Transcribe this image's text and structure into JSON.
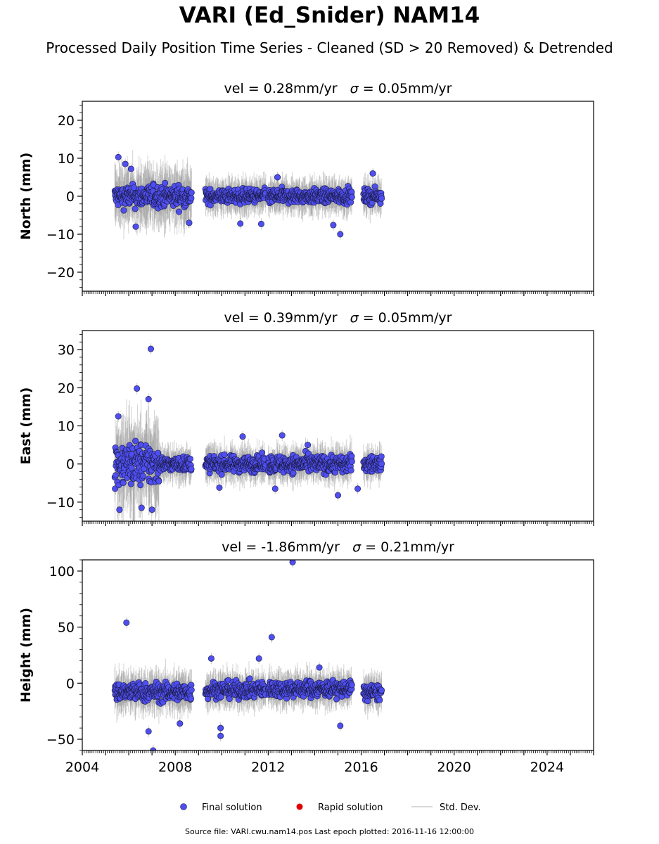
{
  "header": {
    "title": "VARI (Ed_Snider) NAM14",
    "subtitle": "Processed Daily Position Time Series - Cleaned (SD > 20 Removed) & Detrended"
  },
  "footer": {
    "source": "Source file: VARI.cwu.nam14.pos  Last epoch plotted: 2016-11-16 12:00:00"
  },
  "legend": {
    "final_label": "Final solution",
    "rapid_label": "Rapid solution",
    "std_label": "Std. Dev."
  },
  "colors": {
    "final": "#4f4ff0",
    "final_edge": "#1a1a40",
    "rapid": "#e00000",
    "std": "#808080"
  },
  "chart_data": [
    {
      "type": "scatter",
      "title": "vel = 0.28mm/yr   σ = 0.05mm/yr",
      "title_parts": {
        "vel": "vel = 0.28mm/yr",
        "sigma": "σ",
        "sigma_value": " = 0.05mm/yr"
      },
      "ylabel": "North (mm)",
      "xlim": [
        2004.0,
        2026.0
      ],
      "ylim": [
        -25,
        25
      ],
      "yticks": [
        -20,
        -10,
        0,
        10,
        20
      ],
      "ytick_labels": [
        "−20",
        "−10",
        "0",
        "10",
        "20"
      ],
      "xticks": [
        2004,
        2008,
        2012,
        2016,
        2020,
        2024
      ],
      "show_x_tick_labels": false,
      "segments": [
        {
          "start": 2005.4,
          "end": 2008.7,
          "noise": 2.8,
          "err": 6
        },
        {
          "start": 2009.3,
          "end": 2011.9,
          "noise": 1.8,
          "err": 3.5
        },
        {
          "start": 2012.0,
          "end": 2015.6,
          "noise": 1.8,
          "err": 3.5
        },
        {
          "start": 2016.1,
          "end": 2016.88,
          "noise": 1.8,
          "err": 3.5
        }
      ],
      "outliers": [
        {
          "x": 2005.55,
          "y": 10.3
        },
        {
          "x": 2005.85,
          "y": 8.5
        },
        {
          "x": 2006.1,
          "y": 7.2
        },
        {
          "x": 2006.3,
          "y": -8.0
        },
        {
          "x": 2008.6,
          "y": -7.0
        },
        {
          "x": 2010.8,
          "y": -7.2
        },
        {
          "x": 2011.7,
          "y": -7.3
        },
        {
          "x": 2014.8,
          "y": -7.6
        },
        {
          "x": 2015.1,
          "y": -10.0
        },
        {
          "x": 2016.5,
          "y": 6.0
        },
        {
          "x": 2012.4,
          "y": 5.0
        }
      ],
      "series": [
        {
          "name": "Final solution",
          "role": "final"
        },
        {
          "name": "Rapid solution",
          "role": "rapid"
        },
        {
          "name": "Std. Dev.",
          "role": "std"
        }
      ]
    },
    {
      "type": "scatter",
      "title": "vel = 0.39mm/yr   σ = 0.05mm/yr",
      "title_parts": {
        "vel": "vel = 0.39mm/yr",
        "sigma": "σ",
        "sigma_value": " = 0.05mm/yr"
      },
      "ylabel": "East (mm)",
      "xlim": [
        2004.0,
        2026.0
      ],
      "ylim": [
        -15,
        35
      ],
      "yticks": [
        -10,
        0,
        10,
        20,
        30
      ],
      "ytick_labels": [
        "−10",
        "0",
        "10",
        "20",
        "30"
      ],
      "xticks": [
        2004,
        2008,
        2012,
        2016,
        2020,
        2024
      ],
      "show_x_tick_labels": false,
      "segments": [
        {
          "start": 2005.4,
          "end": 2007.3,
          "noise": 5.5,
          "err": 9
        },
        {
          "start": 2007.3,
          "end": 2008.7,
          "noise": 1.8,
          "err": 3.5
        },
        {
          "start": 2009.3,
          "end": 2011.9,
          "noise": 2.0,
          "err": 3.5
        },
        {
          "start": 2012.0,
          "end": 2015.6,
          "noise": 2.2,
          "err": 3.5
        },
        {
          "start": 2016.1,
          "end": 2016.88,
          "noise": 2.0,
          "err": 3.5
        }
      ],
      "outliers": [
        {
          "x": 2006.95,
          "y": 30.2
        },
        {
          "x": 2006.35,
          "y": 19.8
        },
        {
          "x": 2006.85,
          "y": 17.0
        },
        {
          "x": 2005.55,
          "y": 12.5
        },
        {
          "x": 2005.6,
          "y": -12.0
        },
        {
          "x": 2007.0,
          "y": -12.0
        },
        {
          "x": 2006.55,
          "y": -11.5
        },
        {
          "x": 2012.3,
          "y": -6.5
        },
        {
          "x": 2009.9,
          "y": -6.2
        },
        {
          "x": 2015.0,
          "y": -8.2
        },
        {
          "x": 2015.85,
          "y": -6.5
        },
        {
          "x": 2010.9,
          "y": 7.2
        },
        {
          "x": 2012.6,
          "y": 7.5
        },
        {
          "x": 2013.7,
          "y": 5.0
        }
      ],
      "series": [
        {
          "name": "Final solution",
          "role": "final"
        },
        {
          "name": "Rapid solution",
          "role": "rapid"
        },
        {
          "name": "Std. Dev.",
          "role": "std"
        }
      ]
    },
    {
      "type": "scatter",
      "title": "vel = -1.86mm/yr   σ = 0.21mm/yr",
      "title_parts": {
        "vel": "vel = -1.86mm/yr",
        "sigma": "σ",
        "sigma_value": " = 0.21mm/yr"
      },
      "ylabel": "Height (mm)",
      "xlim": [
        2004.0,
        2026.0
      ],
      "ylim": [
        -60,
        110
      ],
      "yticks": [
        -50,
        0,
        50,
        100
      ],
      "ytick_labels": [
        "−50",
        "0",
        "50",
        "100"
      ],
      "xticks": [
        2004,
        2008,
        2012,
        2016,
        2020,
        2024
      ],
      "xtick_labels": [
        "2004",
        "2008",
        "2012",
        "2016",
        "2020",
        "2024"
      ],
      "show_x_tick_labels": true,
      "segments": [
        {
          "start": 2005.4,
          "end": 2008.7,
          "noise": 8,
          "err": 14,
          "offset": -8
        },
        {
          "start": 2009.3,
          "end": 2011.9,
          "noise": 7,
          "err": 12,
          "offset": -6
        },
        {
          "start": 2012.0,
          "end": 2015.6,
          "noise": 7,
          "err": 12,
          "offset": -5
        },
        {
          "start": 2016.1,
          "end": 2016.88,
          "noise": 7,
          "err": 12,
          "offset": -8
        }
      ],
      "outliers": [
        {
          "x": 2013.05,
          "y": 108
        },
        {
          "x": 2005.9,
          "y": 54
        },
        {
          "x": 2012.15,
          "y": 41
        },
        {
          "x": 2006.85,
          "y": -43
        },
        {
          "x": 2007.05,
          "y": -60
        },
        {
          "x": 2009.95,
          "y": -47
        },
        {
          "x": 2009.95,
          "y": -40
        },
        {
          "x": 2015.1,
          "y": -38
        },
        {
          "x": 2009.55,
          "y": 22
        },
        {
          "x": 2011.6,
          "y": 22
        },
        {
          "x": 2014.2,
          "y": 14
        },
        {
          "x": 2008.2,
          "y": -36
        }
      ],
      "series": [
        {
          "name": "Final solution",
          "role": "final"
        },
        {
          "name": "Rapid solution",
          "role": "rapid"
        },
        {
          "name": "Std. Dev.",
          "role": "std"
        }
      ]
    }
  ]
}
